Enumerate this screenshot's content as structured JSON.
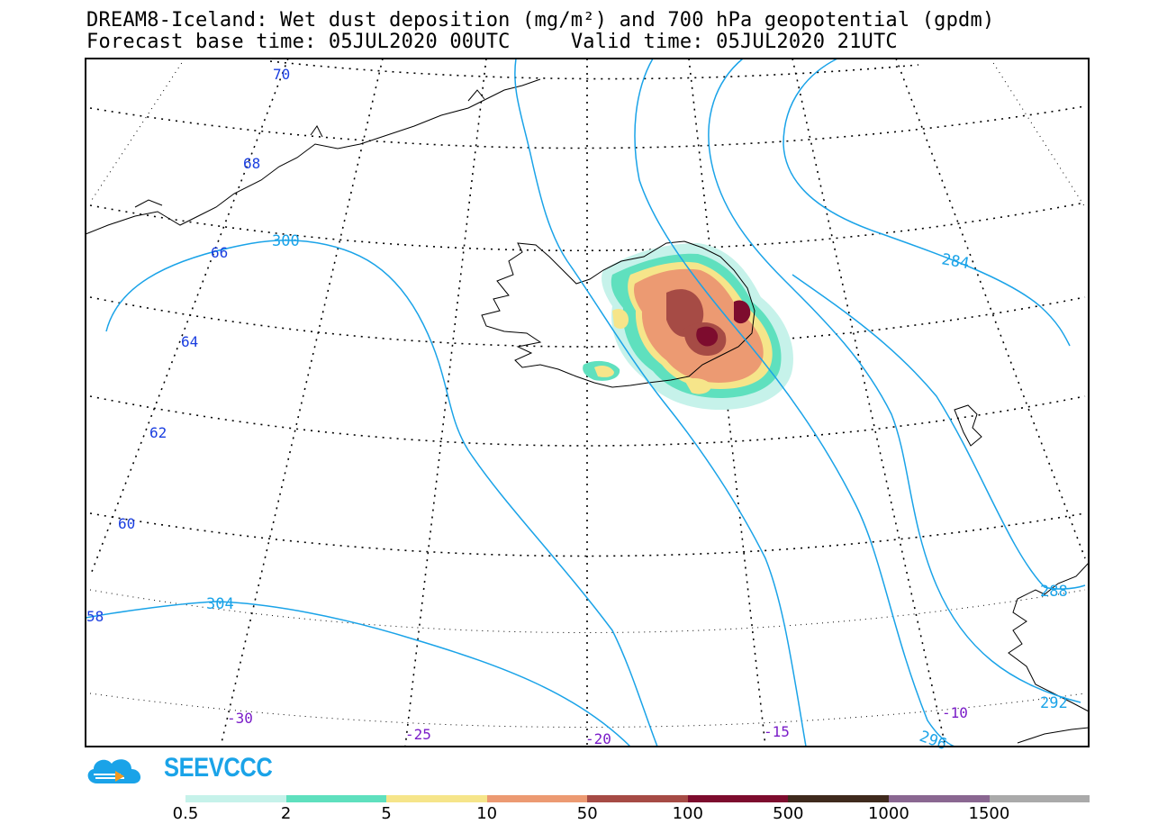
{
  "title": {
    "line1": "DREAM8-Iceland: Wet dust deposition (mg/m²) and 700 hPa geopotential (gpdm)",
    "forecast_base": "Forecast base time: 05JUL2020 00UTC",
    "valid_time": "Valid time: 05JUL2020 21UTC"
  },
  "latitude_labels": [
    "70",
    "68",
    "66",
    "64",
    "62",
    "60",
    "58"
  ],
  "longitude_labels": [
    "-30",
    "-25",
    "-20",
    "-15",
    "-10"
  ],
  "contour_labels": [
    "300",
    "304",
    "284",
    "288",
    "292",
    "296"
  ],
  "logo": {
    "text": "SEEVCCC",
    "icon": "cloud-logo-icon"
  },
  "legend": {
    "ticks": [
      "0.5",
      "2",
      "5",
      "10",
      "50",
      "100",
      "500",
      "1000",
      "1500"
    ],
    "colors": [
      "#c6f2ea",
      "#5fe0be",
      "#f6e58a",
      "#ec9a72",
      "#a64b45",
      "#7d0c2e",
      "#3f2a1d",
      "#8a6791",
      "#aaaaaa"
    ]
  },
  "colors": {
    "contour": "#1aa3e8",
    "lat_label": "#1a3ee0",
    "lon_label": "#7a1cc8"
  }
}
